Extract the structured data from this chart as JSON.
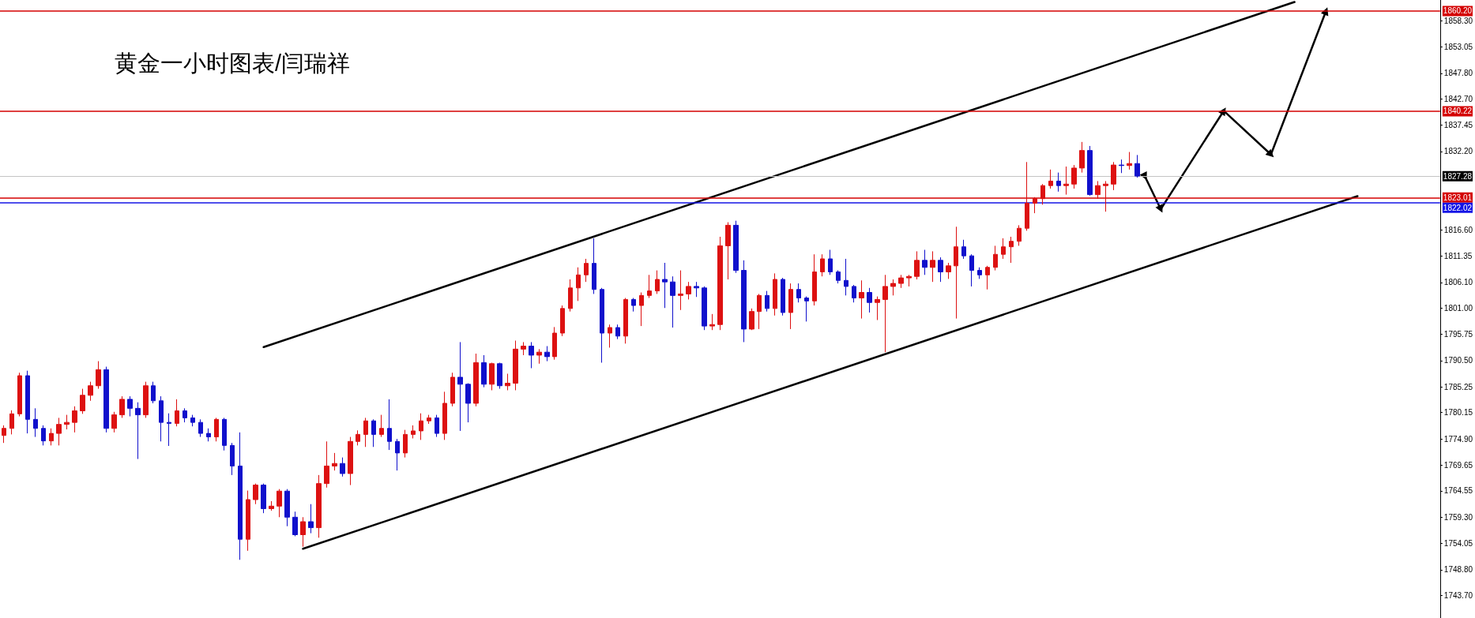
{
  "chart_data": {
    "type": "candlestick",
    "title": "黄金一小时图表/闫瑞祥",
    "categories": [
      null,
      null,
      null,
      null,
      null,
      null,
      null,
      null,
      null,
      null,
      null,
      null,
      null,
      null,
      null,
      null,
      null,
      null,
      null,
      null,
      null,
      null,
      null,
      null,
      null,
      null,
      null,
      null,
      null,
      null,
      null,
      null,
      null,
      null,
      null,
      null,
      null,
      null,
      null,
      null,
      null,
      null,
      null,
      null,
      null,
      null,
      null,
      null,
      null,
      null,
      null,
      null,
      null,
      null,
      null,
      null,
      null,
      null,
      null,
      null,
      null,
      null,
      null,
      null,
      null,
      null,
      null,
      null,
      null,
      null,
      null,
      null,
      null,
      null,
      null,
      null,
      null,
      null,
      null,
      null,
      null,
      null,
      null,
      null,
      null,
      null,
      null,
      null,
      null,
      null,
      null,
      null,
      null,
      null,
      null,
      null,
      null,
      null,
      null,
      null,
      null,
      null,
      null,
      null,
      null,
      null,
      null,
      null,
      null,
      null,
      null,
      null,
      null,
      null,
      null,
      null,
      null,
      null,
      null,
      null,
      null,
      null,
      null,
      null,
      null,
      null,
      null,
      null,
      null,
      null,
      null,
      null,
      null,
      null,
      null,
      null,
      null,
      null,
      null,
      null,
      null,
      null,
      null,
      null,
      null,
      null,
      null,
      null,
      null,
      null,
      null,
      null,
      null,
      null,
      null,
      null,
      null,
      null,
      null,
      null,
      null,
      null,
      null,
      null,
      null,
      null,
      null,
      null,
      null,
      null,
      null,
      null,
      null,
      null,
      null,
      null,
      null,
      null,
      null,
      null,
      null,
      null,
      null
    ],
    "ohlc": [
      [
        1775.6,
        1777.6,
        1774.1,
        1777.0
      ],
      [
        1777.0,
        1780.6,
        1775.8,
        1779.9
      ],
      [
        1779.9,
        1788.1,
        1779.4,
        1787.5
      ],
      [
        1787.5,
        1788.5,
        1776.0,
        1778.8
      ],
      [
        1778.8,
        1781.0,
        1775.3,
        1777.0
      ],
      [
        1777.0,
        1777.6,
        1773.6,
        1774.5
      ],
      [
        1774.5,
        1777.0,
        1773.6,
        1776.0
      ],
      [
        1776.0,
        1779.1,
        1773.6,
        1777.8
      ],
      [
        1777.8,
        1779.7,
        1776.8,
        1778.2
      ],
      [
        1778.2,
        1781.4,
        1776.2,
        1780.5
      ],
      [
        1780.5,
        1784.9,
        1779.9,
        1783.6
      ],
      [
        1783.6,
        1786.3,
        1782.5,
        1785.5
      ],
      [
        1785.5,
        1790.4,
        1784.9,
        1788.7
      ],
      [
        1788.7,
        1789.3,
        1776.2,
        1777.0
      ],
      [
        1777.0,
        1780.3,
        1776.2,
        1779.7
      ],
      [
        1779.7,
        1783.4,
        1779.1,
        1782.8
      ],
      [
        1782.8,
        1783.4,
        1779.4,
        1781.0
      ],
      [
        1781.0,
        1782.2,
        1770.9,
        1779.7
      ],
      [
        1779.7,
        1786.3,
        1779.1,
        1785.5
      ],
      [
        1785.5,
        1786.3,
        1782.0,
        1782.5
      ],
      [
        1782.5,
        1783.4,
        1774.4,
        1778.2
      ],
      [
        1778.2,
        1780.0,
        1773.5,
        1778.0
      ],
      [
        1778.0,
        1782.8,
        1777.4,
        1780.5
      ],
      [
        1780.5,
        1781.0,
        1778.2,
        1779.1
      ],
      [
        1779.1,
        1779.7,
        1777.4,
        1778.2
      ],
      [
        1778.2,
        1778.8,
        1775.3,
        1776.0
      ],
      [
        1776.0,
        1777.0,
        1774.4,
        1775.3
      ],
      [
        1775.3,
        1779.1,
        1774.4,
        1778.8
      ],
      [
        1778.8,
        1779.1,
        1772.6,
        1773.6
      ],
      [
        1773.6,
        1774.1,
        1767.7,
        1769.5
      ],
      [
        1769.5,
        1776.2,
        1750.8,
        1754.9
      ],
      [
        1754.9,
        1764.6,
        1752.6,
        1762.8
      ],
      [
        1762.8,
        1766.0,
        1761.9,
        1765.7
      ],
      [
        1765.7,
        1766.0,
        1760.1,
        1761.0
      ],
      [
        1761.0,
        1762.5,
        1760.6,
        1761.5
      ],
      [
        1761.5,
        1764.9,
        1759.3,
        1764.5
      ],
      [
        1764.5,
        1764.9,
        1757.5,
        1759.3
      ],
      [
        1759.3,
        1760.4,
        1755.5,
        1755.8
      ],
      [
        1755.8,
        1759.3,
        1753.4,
        1758.4
      ],
      [
        1758.4,
        1761.9,
        1756.1,
        1757.2
      ],
      [
        1757.2,
        1767.7,
        1755.2,
        1766.0
      ],
      [
        1766.0,
        1774.4,
        1765.2,
        1769.5
      ],
      [
        1769.5,
        1772.1,
        1768.6,
        1770.0
      ],
      [
        1770.0,
        1771.2,
        1767.4,
        1768.0
      ],
      [
        1768.0,
        1775.3,
        1765.7,
        1774.4
      ],
      [
        1774.4,
        1776.6,
        1773.6,
        1775.8
      ],
      [
        1775.8,
        1779.1,
        1773.3,
        1778.5
      ],
      [
        1778.5,
        1778.8,
        1773.3,
        1775.8
      ],
      [
        1775.8,
        1779.7,
        1775.3,
        1777.0
      ],
      [
        1777.0,
        1782.8,
        1772.7,
        1774.4
      ],
      [
        1774.4,
        1774.9,
        1768.6,
        1772.1
      ],
      [
        1772.1,
        1776.7,
        1771.2,
        1775.8
      ],
      [
        1775.8,
        1777.6,
        1775.0,
        1776.5
      ],
      [
        1776.5,
        1780.0,
        1774.7,
        1778.5
      ],
      [
        1778.5,
        1779.7,
        1777.9,
        1779.1
      ],
      [
        1779.1,
        1779.7,
        1775.3,
        1776.0
      ],
      [
        1776.0,
        1784.3,
        1774.7,
        1782.0
      ],
      [
        1782.0,
        1788.1,
        1781.4,
        1787.2
      ],
      [
        1787.2,
        1794.2,
        1776.5,
        1785.8
      ],
      [
        1785.8,
        1786.0,
        1778.2,
        1782.0
      ],
      [
        1782.0,
        1791.9,
        1781.4,
        1790.1
      ],
      [
        1790.1,
        1791.6,
        1785.2,
        1785.8
      ],
      [
        1785.8,
        1790.1,
        1784.6,
        1789.9
      ],
      [
        1789.9,
        1790.1,
        1784.9,
        1785.5
      ],
      [
        1785.5,
        1787.9,
        1784.6,
        1786.0
      ],
      [
        1786.0,
        1794.5,
        1784.6,
        1792.8
      ],
      [
        1792.8,
        1794.2,
        1791.6,
        1793.4
      ],
      [
        1793.4,
        1794.2,
        1789.0,
        1791.6
      ],
      [
        1791.6,
        1792.8,
        1789.9,
        1792.2
      ],
      [
        1792.2,
        1793.4,
        1790.4,
        1791.3
      ],
      [
        1791.3,
        1797.2,
        1790.7,
        1796.0
      ],
      [
        1796.0,
        1801.5,
        1795.4,
        1800.9
      ],
      [
        1800.9,
        1806.7,
        1800.3,
        1805.0
      ],
      [
        1805.0,
        1809.1,
        1802.4,
        1807.6
      ],
      [
        1807.6,
        1810.8,
        1806.2,
        1809.9
      ],
      [
        1809.9,
        1814.9,
        1803.8,
        1804.7
      ],
      [
        1804.7,
        1805.0,
        1790.1,
        1796.0
      ],
      [
        1796.0,
        1797.7,
        1793.1,
        1797.1
      ],
      [
        1797.1,
        1797.7,
        1794.8,
        1795.4
      ],
      [
        1795.4,
        1803.0,
        1793.9,
        1802.7
      ],
      [
        1802.7,
        1803.0,
        1800.3,
        1801.5
      ],
      [
        1801.5,
        1804.1,
        1797.4,
        1803.5
      ],
      [
        1803.5,
        1807.6,
        1803.0,
        1804.4
      ],
      [
        1804.4,
        1808.5,
        1803.8,
        1806.7
      ],
      [
        1806.7,
        1810.0,
        1801.0,
        1806.2
      ],
      [
        1806.2,
        1807.3,
        1797.1,
        1803.5
      ],
      [
        1803.5,
        1808.5,
        1800.6,
        1803.8
      ],
      [
        1803.8,
        1806.2,
        1802.7,
        1805.3
      ],
      [
        1805.3,
        1806.2,
        1803.2,
        1805.0
      ],
      [
        1805.0,
        1805.3,
        1796.6,
        1797.4
      ],
      [
        1797.4,
        1799.8,
        1796.6,
        1797.7
      ],
      [
        1797.7,
        1815.2,
        1796.6,
        1813.4
      ],
      [
        1813.4,
        1818.1,
        1806.7,
        1817.5
      ],
      [
        1817.5,
        1818.4,
        1808.0,
        1808.5
      ],
      [
        1808.5,
        1810.5,
        1794.2,
        1796.8
      ],
      [
        1796.8,
        1800.9,
        1796.6,
        1800.3
      ],
      [
        1800.3,
        1803.8,
        1796.8,
        1803.5
      ],
      [
        1803.5,
        1804.4,
        1800.3,
        1800.9
      ],
      [
        1800.9,
        1807.9,
        1799.5,
        1806.7
      ],
      [
        1806.7,
        1807.0,
        1799.5,
        1800.1
      ],
      [
        1800.1,
        1805.9,
        1796.8,
        1804.7
      ],
      [
        1804.7,
        1805.9,
        1802.1,
        1803.0
      ],
      [
        1803.0,
        1803.3,
        1798.3,
        1802.4
      ],
      [
        1802.4,
        1811.7,
        1801.5,
        1808.2
      ],
      [
        1808.2,
        1811.7,
        1807.3,
        1810.8
      ],
      [
        1810.8,
        1812.6,
        1807.6,
        1808.2
      ],
      [
        1808.2,
        1808.5,
        1805.9,
        1806.5
      ],
      [
        1806.5,
        1810.8,
        1803.5,
        1805.3
      ],
      [
        1805.3,
        1805.6,
        1802.1,
        1803.0
      ],
      [
        1803.0,
        1806.5,
        1798.9,
        1804.1
      ],
      [
        1804.1,
        1805.0,
        1800.1,
        1802.1
      ],
      [
        1802.1,
        1803.3,
        1798.6,
        1802.7
      ],
      [
        1802.7,
        1807.6,
        1792.2,
        1805.3
      ],
      [
        1805.3,
        1806.7,
        1803.5,
        1805.9
      ],
      [
        1805.9,
        1807.6,
        1805.0,
        1807.0
      ],
      [
        1807.0,
        1807.6,
        1805.3,
        1807.3
      ],
      [
        1807.3,
        1812.3,
        1806.7,
        1810.5
      ],
      [
        1810.5,
        1812.6,
        1807.6,
        1809.1
      ],
      [
        1809.1,
        1812.3,
        1806.2,
        1810.5
      ],
      [
        1810.5,
        1811.1,
        1806.2,
        1808.2
      ],
      [
        1808.2,
        1810.0,
        1806.8,
        1809.4
      ],
      [
        1809.4,
        1817.2,
        1798.9,
        1813.2
      ],
      [
        1813.2,
        1814.6,
        1810.8,
        1811.4
      ],
      [
        1811.4,
        1811.7,
        1805.3,
        1808.5
      ],
      [
        1808.5,
        1809.1,
        1806.8,
        1807.6
      ],
      [
        1807.6,
        1809.4,
        1804.7,
        1809.1
      ],
      [
        1809.1,
        1813.4,
        1808.5,
        1811.7
      ],
      [
        1811.7,
        1814.9,
        1810.8,
        1813.2
      ],
      [
        1813.2,
        1815.2,
        1810.0,
        1814.3
      ],
      [
        1814.3,
        1817.5,
        1813.4,
        1816.9
      ],
      [
        1816.9,
        1830.1,
        1816.4,
        1821.9
      ],
      [
        1821.9,
        1823.1,
        1819.9,
        1822.8
      ],
      [
        1822.8,
        1825.7,
        1821.6,
        1825.4
      ],
      [
        1825.4,
        1828.6,
        1824.8,
        1826.3
      ],
      [
        1826.3,
        1828.0,
        1824.2,
        1825.4
      ],
      [
        1825.4,
        1829.2,
        1823.6,
        1825.7
      ],
      [
        1825.7,
        1829.5,
        1824.8,
        1828.9
      ],
      [
        1828.9,
        1834.1,
        1828.0,
        1832.4
      ],
      [
        1832.4,
        1833.3,
        1823.4,
        1823.6
      ],
      [
        1823.6,
        1826.3,
        1822.8,
        1825.4
      ],
      [
        1825.4,
        1826.3,
        1820.2,
        1825.7
      ],
      [
        1825.7,
        1830.1,
        1824.5,
        1829.5
      ],
      [
        1829.5,
        1830.6,
        1827.9,
        1829.4
      ],
      [
        1829.4,
        1832.1,
        1828.6,
        1829.8
      ],
      [
        1829.8,
        1831.5,
        1827.0,
        1827.3
      ],
      null,
      null,
      null,
      null,
      null,
      null,
      null,
      null,
      null,
      null,
      null,
      null,
      null,
      null,
      null,
      null,
      null,
      null,
      null,
      null,
      null,
      null,
      null,
      null,
      null,
      null,
      null,
      null,
      null,
      null,
      null,
      null,
      null,
      null,
      null,
      null,
      null,
      null
    ],
    "colors": [
      "#dd1111",
      "#dd1111",
      "#dd1111",
      "#1010cc",
      "#1010cc",
      "#1010cc",
      "#dd1111",
      "#dd1111",
      "#dd1111",
      "#dd1111",
      "#dd1111",
      "#dd1111",
      "#dd1111",
      "#1010cc",
      "#dd1111",
      "#dd1111",
      "#1010cc",
      "#1010cc",
      "#dd1111",
      "#1010cc",
      "#1010cc",
      "#1010cc",
      "#dd1111",
      "#1010cc",
      "#1010cc",
      "#1010cc",
      "#1010cc",
      "#dd1111",
      "#1010cc",
      "#1010cc",
      "#1010cc",
      "#dd1111",
      "#dd1111",
      "#1010cc",
      "#dd1111",
      "#dd1111",
      "#1010cc",
      "#1010cc",
      "#dd1111",
      "#1010cc",
      "#dd1111",
      "#dd1111",
      "#dd1111",
      "#1010cc",
      "#dd1111",
      "#dd1111",
      "#dd1111",
      "#1010cc",
      "#dd1111",
      "#1010cc",
      "#1010cc",
      "#dd1111",
      "#dd1111",
      "#dd1111",
      "#dd1111",
      "#1010cc",
      "#dd1111",
      "#dd1111",
      "#1010cc",
      "#1010cc",
      "#dd1111",
      "#1010cc",
      "#dd1111",
      "#1010cc",
      "#dd1111",
      "#dd1111",
      "#dd1111",
      "#1010cc",
      "#dd1111",
      "#1010cc",
      "#dd1111",
      "#dd1111",
      "#dd1111",
      "#dd1111",
      "#dd1111",
      "#1010cc",
      "#1010cc",
      "#dd1111",
      "#1010cc",
      "#dd1111",
      "#1010cc",
      "#dd1111",
      "#dd1111",
      "#dd1111",
      "#1010cc",
      "#1010cc",
      "#dd1111",
      "#dd1111",
      "#1010cc",
      "#1010cc",
      "#dd1111",
      "#dd1111",
      "#dd1111",
      "#1010cc",
      "#1010cc",
      "#dd1111",
      "#dd1111",
      "#1010cc",
      "#dd1111",
      "#1010cc",
      "#dd1111",
      "#1010cc",
      "#1010cc",
      "#dd1111",
      "#dd1111",
      "#1010cc",
      "#1010cc",
      "#1010cc",
      "#1010cc",
      "#dd1111",
      "#1010cc",
      "#dd1111",
      "#dd1111",
      "#dd1111",
      "#dd1111",
      "#dd1111",
      "#dd1111",
      "#1010cc",
      "#dd1111",
      "#1010cc",
      "#dd1111",
      "#dd1111",
      "#1010cc",
      "#1010cc",
      "#1010cc",
      "#dd1111",
      "#dd1111",
      "#dd1111",
      "#dd1111",
      "#dd1111",
      "#dd1111",
      "#dd1111",
      "#dd1111",
      "#dd1111",
      "#1010cc",
      "#dd1111",
      "#dd1111",
      "#dd1111",
      "#1010cc",
      "#dd1111",
      "#dd1111",
      "#dd1111",
      "#1010cc",
      "#dd1111",
      "#1010cc",
      null,
      null,
      null,
      null,
      null,
      null,
      null,
      null,
      null,
      null,
      null,
      null,
      null,
      null,
      null,
      null,
      null,
      null,
      null,
      null,
      null,
      null,
      null,
      null,
      null,
      null,
      null,
      null,
      null,
      null,
      null,
      null,
      null,
      null,
      null,
      null,
      null,
      null
    ],
    "series": [
      {
        "type": "line",
        "color": "#000000",
        "values": [
          null,
          null,
          null,
          null,
          null,
          null,
          null,
          null,
          null,
          null,
          null,
          null,
          null,
          null,
          null,
          null,
          null,
          null,
          null,
          null,
          null,
          null,
          null,
          null,
          null,
          null,
          null,
          null,
          null,
          null,
          null,
          null,
          null,
          1793.2,
          null,
          null,
          null,
          null,
          null,
          null,
          null,
          null,
          null,
          null,
          null,
          null,
          null,
          null,
          null,
          null,
          null,
          null,
          null,
          null,
          null,
          null,
          null,
          null,
          null,
          null,
          null,
          null,
          null,
          null,
          null,
          null,
          null,
          null,
          null,
          null,
          null,
          null,
          null,
          null,
          null,
          null,
          null,
          null,
          null,
          null,
          null,
          null,
          null,
          null,
          null,
          null,
          null,
          null,
          null,
          null,
          null,
          null,
          null,
          null,
          null,
          null,
          null,
          null,
          null,
          null,
          null,
          null,
          null,
          null,
          null,
          null,
          null,
          null,
          null,
          null,
          null,
          null,
          null,
          null,
          null,
          null,
          null,
          null,
          null,
          null,
          null,
          null,
          null,
          null,
          null,
          null,
          null,
          null,
          null,
          null,
          null,
          null,
          null,
          null,
          null,
          null,
          null,
          null,
          null,
          null,
          null,
          null,
          null,
          null,
          null,
          null,
          null,
          null,
          null,
          null,
          null,
          null,
          null,
          null,
          null,
          null,
          null,
          null,
          null,
          null,
          null,
          null,
          null,
          null,
          1862.0,
          null,
          null,
          null,
          null,
          null,
          null,
          null,
          null,
          null,
          null,
          null,
          null,
          null,
          null,
          null,
          null,
          null,
          null
        ]
      },
      {
        "type": "line",
        "color": "#000000",
        "values": [
          null,
          null,
          null,
          null,
          null,
          null,
          null,
          null,
          null,
          null,
          null,
          null,
          null,
          null,
          null,
          null,
          null,
          null,
          null,
          null,
          null,
          null,
          null,
          null,
          null,
          null,
          null,
          null,
          null,
          null,
          null,
          null,
          null,
          null,
          null,
          null,
          null,
          null,
          1753.0,
          null,
          null,
          null,
          null,
          null,
          null,
          null,
          null,
          null,
          null,
          null,
          null,
          null,
          null,
          null,
          null,
          null,
          null,
          null,
          null,
          null,
          null,
          null,
          null,
          null,
          null,
          null,
          null,
          null,
          null,
          null,
          null,
          null,
          null,
          null,
          null,
          null,
          null,
          null,
          null,
          null,
          null,
          null,
          null,
          null,
          null,
          null,
          null,
          null,
          null,
          null,
          null,
          null,
          null,
          null,
          null,
          null,
          null,
          null,
          null,
          null,
          null,
          null,
          null,
          null,
          null,
          null,
          null,
          null,
          null,
          null,
          null,
          null,
          null,
          null,
          null,
          null,
          null,
          null,
          null,
          null,
          null,
          null,
          null,
          null,
          null,
          null,
          null,
          null,
          null,
          null,
          null,
          null,
          null,
          null,
          null,
          null,
          null,
          null,
          null,
          null,
          null,
          null,
          null,
          null,
          null,
          null,
          null,
          null,
          null,
          null,
          null,
          null,
          null,
          null,
          null,
          null,
          null,
          null,
          null,
          null,
          null,
          null,
          null,
          null,
          null,
          null,
          null,
          null,
          null,
          null,
          null,
          null,
          1823.3,
          null,
          null,
          null,
          null,
          null,
          null,
          null,
          null,
          null,
          null
        ]
      },
      {
        "type": "line",
        "color": "#000000",
        "marker": "triangle",
        "values": [
          null,
          null,
          null,
          null,
          null,
          null,
          null,
          null,
          null,
          null,
          null,
          null,
          null,
          null,
          null,
          null,
          null,
          null,
          null,
          null,
          null,
          null,
          null,
          null,
          null,
          null,
          null,
          null,
          null,
          null,
          null,
          null,
          null,
          null,
          null,
          null,
          null,
          null,
          null,
          null,
          null,
          null,
          null,
          null,
          null,
          null,
          null,
          null,
          null,
          null,
          null,
          null,
          null,
          null,
          null,
          null,
          null,
          null,
          null,
          null,
          null,
          null,
          null,
          null,
          null,
          null,
          null,
          null,
          null,
          null,
          null,
          null,
          null,
          null,
          null,
          null,
          null,
          null,
          null,
          null,
          null,
          null,
          null,
          null,
          null,
          null,
          null,
          null,
          null,
          null,
          null,
          null,
          null,
          null,
          null,
          null,
          null,
          null,
          null,
          null,
          null,
          null,
          null,
          null,
          null,
          null,
          null,
          null,
          null,
          null,
          null,
          null,
          null,
          null,
          null,
          null,
          null,
          null,
          null,
          null,
          null,
          null,
          null,
          null,
          null,
          null,
          null,
          null,
          null,
          null,
          null,
          null,
          null,
          null,
          null,
          null,
          null,
          null,
          null,
          null,
          null,
          null,
          null,
          null,
          null,
          1827.2,
          null,
          1820.7,
          null,
          null,
          null,
          null,
          null,
          null,
          null,
          1840.3,
          null,
          null,
          null,
          null,
          null,
          1831.6,
          null,
          null,
          null,
          null,
          null,
          null,
          1860.2,
          null,
          null,
          null,
          null,
          null,
          null,
          null,
          null,
          null,
          null,
          null,
          null,
          null,
          null
        ]
      }
    ],
    "ylim": [
      1739.2,
      1862.4
    ],
    "yticks": [
      {
        "value": 1858.3,
        "label": "1858.30"
      },
      {
        "value": 1853.05,
        "label": "1853.05"
      },
      {
        "value": 1847.8,
        "label": "1847.80"
      },
      {
        "value": 1842.7,
        "label": "1842.70"
      },
      {
        "value": 1837.45,
        "label": "1837.45"
      },
      {
        "value": 1832.2,
        "label": "1832.20"
      },
      {
        "value": 1816.6,
        "label": "1816.60"
      },
      {
        "value": 1811.35,
        "label": "1811.35"
      },
      {
        "value": 1806.1,
        "label": "1806.10"
      },
      {
        "value": 1801.0,
        "label": "1801.00"
      },
      {
        "value": 1795.75,
        "label": "1795.75"
      },
      {
        "value": 1790.5,
        "label": "1790.50"
      },
      {
        "value": 1785.25,
        "label": "1785.25"
      },
      {
        "value": 1780.15,
        "label": "1780.15"
      },
      {
        "value": 1774.9,
        "label": "1774.90"
      },
      {
        "value": 1769.65,
        "label": "1769.65"
      },
      {
        "value": 1764.55,
        "label": "1764.55"
      },
      {
        "value": 1759.3,
        "label": "1759.30"
      },
      {
        "value": 1754.05,
        "label": "1754.05"
      },
      {
        "value": 1748.8,
        "label": "1748.80"
      },
      {
        "value": 1743.7,
        "label": "1743.70"
      }
    ],
    "ref_lines": [
      {
        "axis": "y",
        "value": 1860.2,
        "label": "1860.20",
        "color": "#d40000"
      },
      {
        "axis": "y",
        "value": 1840.22,
        "label": "1840.22",
        "color": "#d40000"
      },
      {
        "axis": "y",
        "value": 1827.28,
        "label": "1827.28",
        "color": "#c4c4c4"
      },
      {
        "axis": "y",
        "value": 1823.01,
        "label": "1823.01",
        "color": "#d40000"
      },
      {
        "axis": "y",
        "value": 1822.02,
        "label": "1822.02",
        "color": "#1414e6"
      }
    ],
    "tick_labels": "y"
  }
}
